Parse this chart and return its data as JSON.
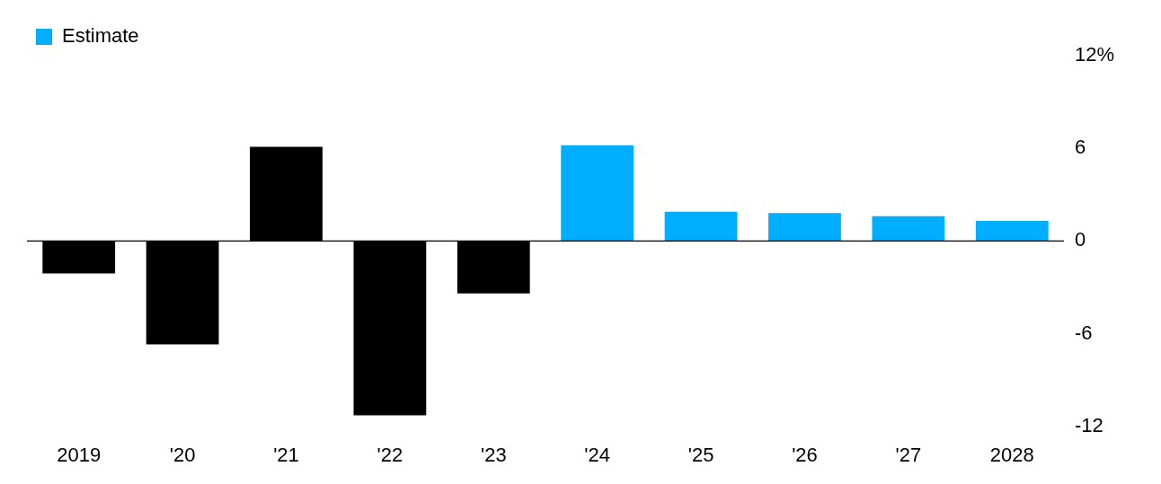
{
  "chart_data": {
    "type": "bar",
    "categories": [
      "2019",
      "'20",
      "'21",
      "'22",
      "'23",
      "'24",
      "'25",
      "'26",
      "'27",
      "2028"
    ],
    "series": [
      {
        "color": "#000000",
        "values": [
          -2.1,
          -6.7,
          6.1,
          -11.3,
          -3.4,
          null,
          null,
          null,
          null,
          null
        ]
      },
      {
        "name": "Estimate",
        "color": "#00aeff",
        "values": [
          null,
          null,
          null,
          null,
          null,
          6.2,
          1.9,
          1.8,
          1.6,
          1.3
        ]
      }
    ],
    "ylim": [
      -12,
      12
    ],
    "yticks": [
      {
        "value": 12,
        "label": "12%"
      },
      6,
      0,
      -6,
      -12
    ],
    "grid": false,
    "ref_lines": [
      {
        "axis": "y",
        "value": 0,
        "color": "#000000"
      }
    ],
    "legend": "top left"
  }
}
